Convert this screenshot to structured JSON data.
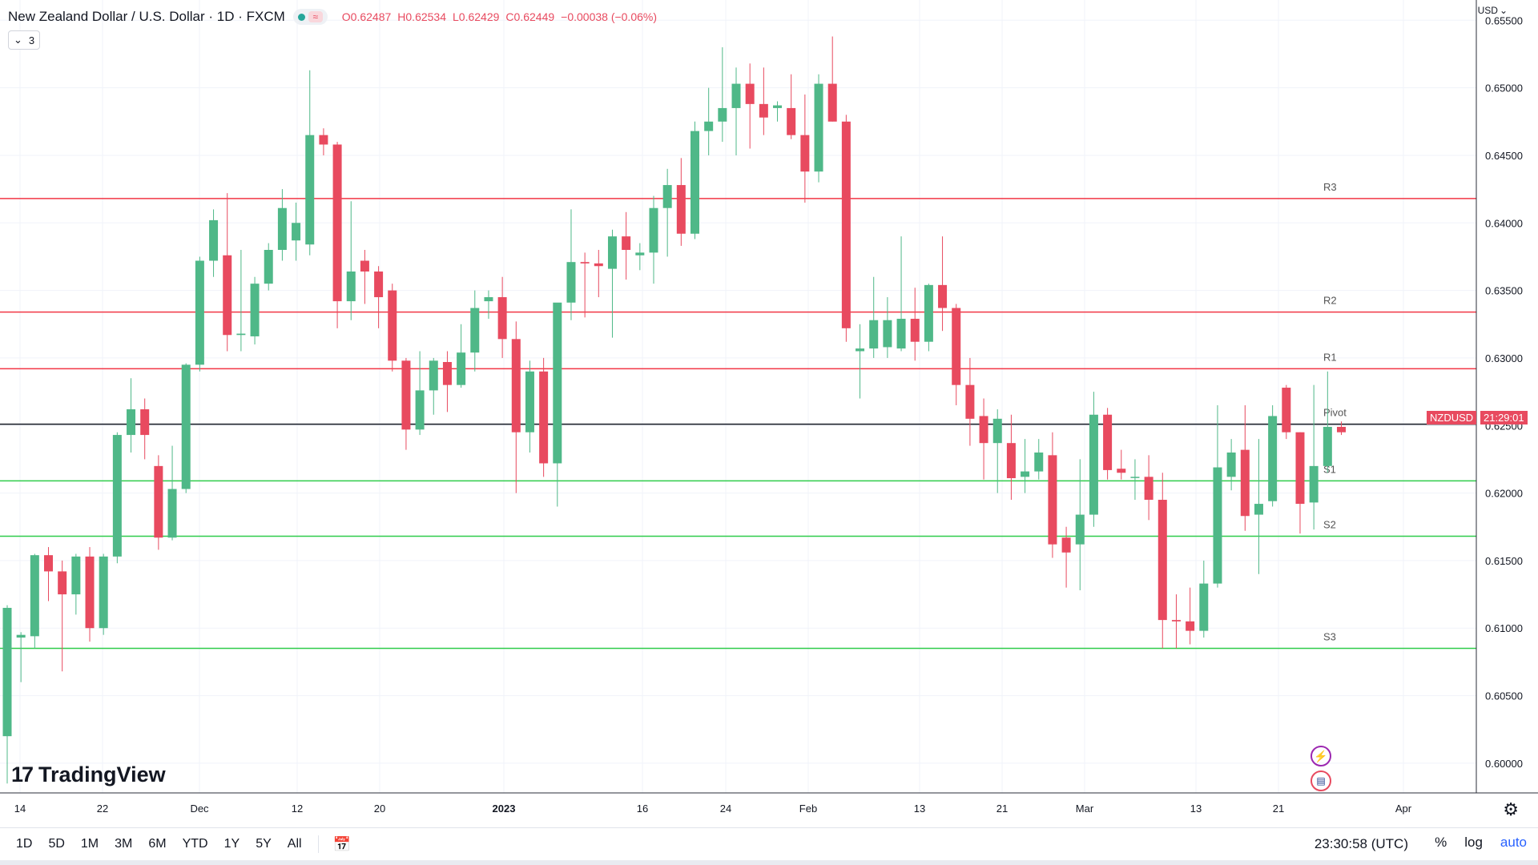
{
  "header": {
    "title": "New Zealand Dollar / U.S. Dollar · 1D · FXCM",
    "ohlc": [
      {
        "label": "O",
        "value": "0.62487"
      },
      {
        "label": "H",
        "value": "0.62534"
      },
      {
        "label": "L",
        "value": "0.62429"
      },
      {
        "label": "C",
        "value": "0.62449"
      }
    ],
    "change": "−0.00038 (−0.06%)",
    "indicator_count": "3",
    "status_color": "#26a69a"
  },
  "axis": {
    "currency": "USD",
    "y_ticks": [
      "0.65500",
      "0.65000",
      "0.64500",
      "0.64000",
      "0.63500",
      "0.63000",
      "0.62500",
      "0.62000",
      "0.61500",
      "0.61000",
      "0.60500",
      "0.60000"
    ],
    "x_ticks": [
      "14",
      "22",
      "Dec",
      "12",
      "20",
      "2023",
      "16",
      "24",
      "Feb",
      "13",
      "21",
      "Mar",
      "13",
      "21",
      "Apr"
    ],
    "symbol_tag": "NZDUSD",
    "countdown": "21:29:01"
  },
  "levels": [
    {
      "label": "R3",
      "value": 0.6418,
      "color": "#f23645"
    },
    {
      "label": "R2",
      "value": 0.6334,
      "color": "#f23645"
    },
    {
      "label": "R1",
      "value": 0.6292,
      "color": "#f23645"
    },
    {
      "label": "Pivot",
      "value": 0.6251,
      "color": "#131722"
    },
    {
      "label": "S1",
      "value": 0.6209,
      "color": "#2fcc4a"
    },
    {
      "label": "S2",
      "value": 0.6168,
      "color": "#2fcc4a"
    },
    {
      "label": "S3",
      "value": 0.6085,
      "color": "#2fcc4a"
    }
  ],
  "colors": {
    "up": "#4fb888",
    "down": "#e84a5f",
    "grid": "#f0f3fa"
  },
  "logo_text": "TradingView",
  "logo_mark": "17",
  "bottom": {
    "ranges": [
      "1D",
      "5D",
      "1M",
      "3M",
      "6M",
      "YTD",
      "1Y",
      "5Y",
      "All"
    ],
    "clock": "23:30:58 (UTC)",
    "percent": "%",
    "log": "log",
    "auto": "auto"
  },
  "chart_data": {
    "type": "candlestick",
    "title": "New Zealand Dollar / U.S. Dollar · 1D · FXCM",
    "ylim": [
      0.5978,
      0.6565
    ],
    "candles": [
      [
        0.602,
        0.6117,
        0.5985,
        0.6115
      ],
      [
        0.6093,
        0.6097,
        0.606,
        0.6095
      ],
      [
        0.6094,
        0.6155,
        0.6085,
        0.6154
      ],
      [
        0.6154,
        0.616,
        0.612,
        0.6142
      ],
      [
        0.6142,
        0.615,
        0.6068,
        0.6125
      ],
      [
        0.6125,
        0.6155,
        0.611,
        0.6153
      ],
      [
        0.6153,
        0.616,
        0.609,
        0.61
      ],
      [
        0.61,
        0.6155,
        0.6095,
        0.6153
      ],
      [
        0.6153,
        0.6245,
        0.6148,
        0.6243
      ],
      [
        0.6243,
        0.6285,
        0.623,
        0.6262
      ],
      [
        0.6262,
        0.627,
        0.6225,
        0.6243
      ],
      [
        0.622,
        0.6228,
        0.6158,
        0.6167
      ],
      [
        0.6167,
        0.6235,
        0.6165,
        0.6203
      ],
      [
        0.6203,
        0.6296,
        0.62,
        0.6295
      ],
      [
        0.6295,
        0.6375,
        0.629,
        0.6372
      ],
      [
        0.6372,
        0.641,
        0.636,
        0.6402
      ],
      [
        0.6376,
        0.6422,
        0.6305,
        0.6317
      ],
      [
        0.6317,
        0.638,
        0.6305,
        0.6318
      ],
      [
        0.6316,
        0.636,
        0.631,
        0.6355
      ],
      [
        0.6355,
        0.6385,
        0.635,
        0.638
      ],
      [
        0.638,
        0.6425,
        0.6372,
        0.6411
      ],
      [
        0.6387,
        0.6415,
        0.6372,
        0.64
      ],
      [
        0.6384,
        0.6513,
        0.6376,
        0.6465
      ],
      [
        0.6465,
        0.647,
        0.645,
        0.6458
      ],
      [
        0.6458,
        0.646,
        0.6322,
        0.6342
      ],
      [
        0.6342,
        0.6416,
        0.6328,
        0.6364
      ],
      [
        0.6372,
        0.638,
        0.634,
        0.6364
      ],
      [
        0.6364,
        0.6368,
        0.6322,
        0.6345
      ],
      [
        0.635,
        0.6355,
        0.629,
        0.6298
      ],
      [
        0.6298,
        0.63,
        0.6232,
        0.6247
      ],
      [
        0.6247,
        0.6305,
        0.6243,
        0.6276
      ],
      [
        0.6276,
        0.63,
        0.6258,
        0.6298
      ],
      [
        0.6297,
        0.6305,
        0.626,
        0.628
      ],
      [
        0.628,
        0.6325,
        0.6278,
        0.6304
      ],
      [
        0.6304,
        0.635,
        0.629,
        0.6337
      ],
      [
        0.6342,
        0.635,
        0.6329,
        0.6345
      ],
      [
        0.6345,
        0.636,
        0.63,
        0.6314
      ],
      [
        0.6314,
        0.6327,
        0.62,
        0.6245
      ],
      [
        0.6245,
        0.6298,
        0.623,
        0.629
      ],
      [
        0.629,
        0.63,
        0.6212,
        0.6222
      ],
      [
        0.6222,
        0.634,
        0.619,
        0.6341
      ],
      [
        0.6341,
        0.641,
        0.6328,
        0.6371
      ],
      [
        0.6371,
        0.6378,
        0.633,
        0.637
      ],
      [
        0.637,
        0.638,
        0.6345,
        0.6368
      ],
      [
        0.6366,
        0.6395,
        0.6315,
        0.639
      ],
      [
        0.639,
        0.6408,
        0.6358,
        0.638
      ],
      [
        0.6376,
        0.6385,
        0.6365,
        0.6378
      ],
      [
        0.6378,
        0.642,
        0.6355,
        0.6411
      ],
      [
        0.6411,
        0.644,
        0.6375,
        0.6428
      ],
      [
        0.6428,
        0.6448,
        0.6383,
        0.6392
      ],
      [
        0.6392,
        0.6475,
        0.6388,
        0.6468
      ],
      [
        0.6468,
        0.65,
        0.645,
        0.6475
      ],
      [
        0.6475,
        0.653,
        0.646,
        0.6485
      ],
      [
        0.6485,
        0.6515,
        0.645,
        0.6503
      ],
      [
        0.6503,
        0.6518,
        0.6455,
        0.6488
      ],
      [
        0.6488,
        0.6515,
        0.6465,
        0.6478
      ],
      [
        0.6485,
        0.649,
        0.6475,
        0.6487
      ],
      [
        0.6485,
        0.651,
        0.6462,
        0.6465
      ],
      [
        0.6465,
        0.6495,
        0.6415,
        0.6438
      ],
      [
        0.6438,
        0.651,
        0.643,
        0.6503
      ],
      [
        0.6503,
        0.6538,
        0.6475,
        0.6475
      ],
      [
        0.6475,
        0.648,
        0.6312,
        0.6322
      ],
      [
        0.6305,
        0.6325,
        0.627,
        0.6307
      ],
      [
        0.6307,
        0.636,
        0.63,
        0.6328
      ],
      [
        0.6308,
        0.6345,
        0.63,
        0.6328
      ],
      [
        0.6307,
        0.639,
        0.6305,
        0.6329
      ],
      [
        0.6329,
        0.6352,
        0.6298,
        0.6312
      ],
      [
        0.6312,
        0.6355,
        0.6305,
        0.6354
      ],
      [
        0.6354,
        0.639,
        0.632,
        0.6337
      ],
      [
        0.6337,
        0.634,
        0.6265,
        0.628
      ],
      [
        0.628,
        0.63,
        0.6235,
        0.6255
      ],
      [
        0.6257,
        0.627,
        0.621,
        0.6237
      ],
      [
        0.6237,
        0.6262,
        0.62,
        0.6255
      ],
      [
        0.6237,
        0.6258,
        0.6195,
        0.6211
      ],
      [
        0.6212,
        0.624,
        0.62,
        0.6216
      ],
      [
        0.6216,
        0.624,
        0.621,
        0.623
      ],
      [
        0.6228,
        0.6245,
        0.6152,
        0.6162
      ],
      [
        0.6167,
        0.6175,
        0.613,
        0.6156
      ],
      [
        0.6162,
        0.6225,
        0.6128,
        0.6184
      ],
      [
        0.6184,
        0.6275,
        0.6175,
        0.6258
      ],
      [
        0.6258,
        0.6263,
        0.621,
        0.6217
      ],
      [
        0.6218,
        0.6232,
        0.621,
        0.6215
      ],
      [
        0.6212,
        0.6225,
        0.6195,
        0.6212
      ],
      [
        0.6212,
        0.6228,
        0.618,
        0.6195
      ],
      [
        0.6195,
        0.6215,
        0.6085,
        0.6106
      ],
      [
        0.6106,
        0.6125,
        0.6085,
        0.6105
      ],
      [
        0.6105,
        0.613,
        0.6088,
        0.6098
      ],
      [
        0.6098,
        0.615,
        0.6093,
        0.6133
      ],
      [
        0.6133,
        0.6265,
        0.613,
        0.6219
      ],
      [
        0.6212,
        0.624,
        0.6202,
        0.623
      ],
      [
        0.6232,
        0.6265,
        0.6172,
        0.6183
      ],
      [
        0.6184,
        0.624,
        0.614,
        0.6192
      ],
      [
        0.6194,
        0.6265,
        0.619,
        0.6257
      ],
      [
        0.6278,
        0.628,
        0.624,
        0.6245
      ],
      [
        0.6245,
        0.6245,
        0.617,
        0.6192
      ],
      [
        0.6193,
        0.628,
        0.6173,
        0.622
      ],
      [
        0.622,
        0.629,
        0.6215,
        0.6249
      ],
      [
        0.6249,
        0.6253,
        0.6243,
        0.6245
      ]
    ]
  }
}
